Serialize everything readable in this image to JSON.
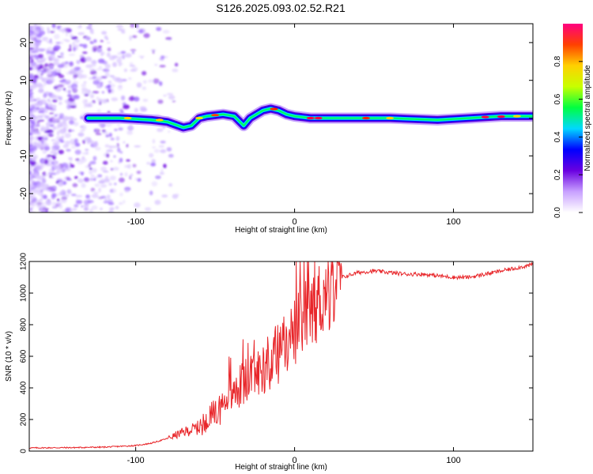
{
  "figure": {
    "title": "S126.2025.093.02.52.R21"
  },
  "chart_data": [
    {
      "type": "heatmap",
      "xlabel": "Height of straight line (km)",
      "ylabel": "Frequency (Hz)",
      "xlim": [
        -167,
        150
      ],
      "ylim": [
        -25,
        25
      ],
      "xticks": [
        -100,
        0,
        100
      ],
      "xtick_labels": [
        "-100",
        "0",
        "100"
      ],
      "yticks": [
        -20,
        -10,
        0,
        10,
        20
      ],
      "ytick_labels": [
        "-20",
        "-10",
        "0",
        "10",
        "20"
      ],
      "colorbar": {
        "label": "Normalized spectral amplitude",
        "range": [
          0,
          1
        ],
        "ticks": [
          0.0,
          0.2,
          0.4,
          0.6,
          0.8
        ],
        "tick_labels": [
          "0.0",
          "0.2",
          "0.4",
          "0.6",
          "0.8"
        ],
        "colors": [
          "#ffffff",
          "#c8a0ff",
          "#6a00e0",
          "#0000ff",
          "#00d8ff",
          "#00ff40",
          "#c8ff00",
          "#ffd000",
          "#ff4000",
          "#ff0080"
        ]
      },
      "ridge_frequency": {
        "x": [
          -130,
          -110,
          -90,
          -80,
          -70,
          -65,
          -60,
          -55,
          -45,
          -38,
          -32,
          -28,
          -24,
          -20,
          -15,
          -10,
          -5,
          0,
          10,
          30,
          60,
          90,
          110,
          130,
          150
        ],
        "y": [
          0,
          0,
          -0.5,
          -1,
          -2.5,
          -2,
          0,
          0.5,
          1,
          0.5,
          -2,
          0,
          1,
          2,
          2.5,
          2,
          1,
          0.5,
          0,
          0,
          0,
          -0.5,
          0,
          0.5,
          0.5
        ]
      }
    },
    {
      "type": "line",
      "xlabel": "Height of straight line (km)",
      "ylabel": "SNR (10 * v/v)",
      "xlim": [
        -167,
        150
      ],
      "ylim": [
        0,
        1200
      ],
      "xticks": [
        -100,
        0,
        100
      ],
      "xtick_labels": [
        "-100",
        "0",
        "100"
      ],
      "yticks": [
        0,
        200,
        400,
        600,
        800,
        1000,
        1200
      ],
      "ytick_labels": [
        "0",
        "200",
        "400",
        "600",
        "800",
        "1000",
        "1200"
      ],
      "series": [
        {
          "name": "SNR",
          "color": "#e8262a",
          "x": [
            -167,
            -140,
            -120,
            -100,
            -90,
            -80,
            -70,
            -60,
            -55,
            -50,
            -45,
            -40,
            -35,
            -30,
            -25,
            -20,
            -15,
            -10,
            -5,
            0,
            5,
            10,
            15,
            20,
            25,
            30,
            40,
            50,
            60,
            70,
            80,
            90,
            100,
            110,
            120,
            130,
            140,
            150
          ],
          "y": [
            20,
            22,
            25,
            35,
            50,
            80,
            120,
            150,
            200,
            230,
            300,
            350,
            400,
            450,
            480,
            520,
            580,
            620,
            700,
            750,
            820,
            880,
            950,
            1000,
            1060,
            1100,
            1130,
            1140,
            1130,
            1120,
            1120,
            1110,
            1100,
            1100,
            1120,
            1140,
            1160,
            1180
          ]
        }
      ]
    }
  ]
}
